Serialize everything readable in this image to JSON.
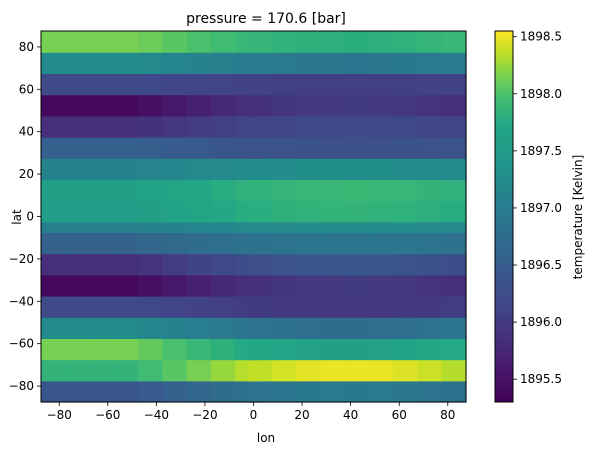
{
  "chart_data": {
    "type": "heatmap",
    "title": "pressure = 170.6 [bar]",
    "xlabel": "lon",
    "ylabel": "lat",
    "colorbar_label": "temperature [Kelvin]",
    "colormap": "viridis",
    "xlim": [
      -87.5,
      87.5
    ],
    "ylim": [
      -87.5,
      87.5
    ],
    "clim": [
      1895.3,
      1898.55
    ],
    "x_ticks": [
      -80,
      -60,
      -40,
      -20,
      0,
      20,
      40,
      60,
      80
    ],
    "y_ticks": [
      -80,
      -60,
      -40,
      -20,
      0,
      20,
      40,
      60,
      80
    ],
    "x_tick_labels": [
      "−80",
      "−60",
      "−40",
      "−20",
      "0",
      "20",
      "40",
      "60",
      "80"
    ],
    "y_tick_labels": [
      "−80",
      "−60",
      "−40",
      "−20",
      "0",
      "20",
      "40",
      "60",
      "80"
    ],
    "colorbar_ticks": [
      1895.5,
      1896.0,
      1896.5,
      1897.0,
      1897.5,
      1898.0,
      1898.5
    ],
    "colorbar_tick_labels": [
      "1895.5",
      "1896.0",
      "1896.5",
      "1897.0",
      "1897.5",
      "1898.0",
      "1898.5"
    ],
    "x_centers": [
      -82.5,
      -72.5,
      -62.5,
      -52.5,
      -42.5,
      -32.5,
      -22.5,
      -12.5,
      -2.5,
      2.5,
      12.5,
      22.5,
      32.5,
      42.5,
      52.5,
      62.5,
      72.5,
      82.5
    ],
    "y_centers": [
      -82.5,
      -72.5,
      -62.5,
      -52.5,
      -42.5,
      -32.5,
      -22.5,
      -12.5,
      -2.5,
      2.5,
      12.5,
      22.5,
      32.5,
      42.5,
      52.5,
      62.5,
      72.5,
      82.5
    ],
    "cell_size": 10,
    "lat_profile": [
      [
        -82.5,
        1896.4,
        1896.95
      ],
      [
        -72.5,
        1897.85,
        1898.5
      ],
      [
        -62.5,
        1898.15,
        1897.6
      ],
      [
        -52.5,
        1897.25,
        1896.75
      ],
      [
        -42.5,
        1896.2,
        1895.95
      ],
      [
        -32.5,
        1895.4,
        1896.0
      ],
      [
        -22.5,
        1895.85,
        1896.4
      ],
      [
        -12.5,
        1896.6,
        1896.9
      ],
      [
        -2.5,
        1897.05,
        1897.25
      ],
      [
        2.5,
        1897.55,
        1897.85
      ],
      [
        12.5,
        1897.6,
        1897.9
      ],
      [
        22.5,
        1897.1,
        1897.3
      ],
      [
        32.5,
        1896.55,
        1896.3
      ],
      [
        42.5,
        1895.85,
        1896.2
      ],
      [
        52.5,
        1895.4,
        1896.0
      ],
      [
        62.5,
        1896.2,
        1896.05
      ],
      [
        72.5,
        1897.25,
        1896.9
      ],
      [
        82.5,
        1898.15,
        1897.8
      ]
    ]
  }
}
